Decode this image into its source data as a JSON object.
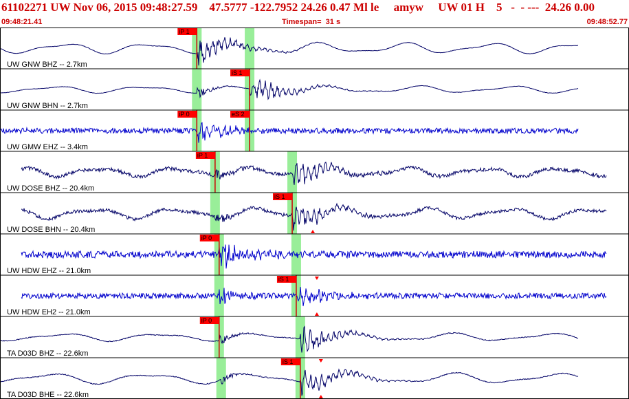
{
  "header": {
    "title": "61102271 UW Nov 06, 2015 09:48:27.59    47.5777 -122.7952 24.26 0.47 Ml le     amyw     UW 01 H    5   -  - ---  24.26 0.00",
    "start_time": "09:48:21.41",
    "timespan": "Timespan=  31 s",
    "end_time": "09:48:52.77"
  },
  "colors": {
    "header_text": "#cc0000",
    "trace_broadband": "#000066",
    "trace_short_period": "#0000cc",
    "pick_box": "#ff0000",
    "pick_line": "#cc0000",
    "window": "#99ee99",
    "separator": "#000000"
  },
  "traces": [
    {
      "label": "UW GNW BHZ -- 2.7km",
      "kind": "broadband",
      "picks": [
        {
          "label": "iP 1",
          "time": 9.7
        },
        {
          "label": "",
          "time": 12.3,
          "window_only": true
        }
      ],
      "windows": [
        9.7,
        12.3
      ],
      "arrival": 9.7,
      "amp": 12,
      "noise": 0.05,
      "start": 0.0,
      "end": 28.5,
      "period": 4.2
    },
    {
      "label": "UW GNW BHN -- 2.7km",
      "kind": "broadband",
      "picks": [
        {
          "label": "iS 1",
          "time": 12.3
        }
      ],
      "windows": [
        9.7,
        12.3
      ],
      "arrival": 12.3,
      "amp": 8,
      "noise": 0.05,
      "start": 0.0,
      "end": 28.5,
      "period": 4.5
    },
    {
      "label": "UW GMW EHZ -- 3.4km",
      "kind": "short",
      "picks": [
        {
          "label": "iP 0",
          "time": 9.7
        },
        {
          "label": "eS 2",
          "time": 12.3
        }
      ],
      "windows": [
        9.7,
        12.3
      ],
      "arrival": 9.7,
      "amp": 3,
      "noise": 0.4,
      "start": 0.0,
      "end": 28.5,
      "period": 1.0
    },
    {
      "label": "UW DOSE BHZ -- 20.4km",
      "kind": "broadband",
      "picks": [
        {
          "label": "iP 1",
          "time": 10.6
        }
      ],
      "windows": [
        10.6,
        14.4
      ],
      "arrival": 14.4,
      "amp": 10,
      "noise": 0.45,
      "start": 1.05,
      "end": 29.9,
      "period": 3.8
    },
    {
      "label": "UW DOSE BHN -- 20.4km",
      "kind": "broadband",
      "picks": [
        {
          "label": "iS 1",
          "time": 14.4,
          "marker_up": true
        }
      ],
      "windows": [
        10.6,
        14.4
      ],
      "arrival": 14.4,
      "amp": 12,
      "noise": 0.4,
      "start": 1.05,
      "end": 29.9,
      "period": 4.1
    },
    {
      "label": "UW HDW EHZ -- 21.0km",
      "kind": "short",
      "picks": [
        {
          "label": "iP 0",
          "time": 10.8
        }
      ],
      "windows": [
        10.8,
        14.6
      ],
      "arrival": 10.8,
      "amp": 3,
      "noise": 0.5,
      "start": 1.05,
      "end": 29.9,
      "period": 1.0
    },
    {
      "label": "UW HDW EH2 -- 21.0km",
      "kind": "short",
      "picks": [
        {
          "label": "iS 1",
          "time": 14.6,
          "marker_down": true,
          "marker_up": true
        }
      ],
      "windows": [
        10.8,
        14.6
      ],
      "arrival": 14.6,
      "amp": 3,
      "noise": 0.4,
      "start": 1.05,
      "end": 29.9,
      "period": 1.0
    },
    {
      "label": "TA D03D BHZ -- 22.6km",
      "kind": "broadband",
      "picks": [
        {
          "label": "iP 0",
          "time": 10.8
        }
      ],
      "windows": [
        10.8,
        14.8
      ],
      "arrival": 14.8,
      "amp": 9,
      "noise": 0.1,
      "start": 0.0,
      "end": 28.5,
      "period": 4.8
    },
    {
      "label": "TA D03D BHE -- 22.6km",
      "kind": "broadband",
      "picks": [
        {
          "label": "iS 1",
          "time": 14.8,
          "marker_down": true,
          "marker_up": true
        }
      ],
      "windows": [
        10.9,
        14.8
      ],
      "arrival": 14.8,
      "amp": 12,
      "noise": 0.1,
      "start": 0.0,
      "end": 28.5,
      "period": 5.0
    }
  ],
  "timespan_seconds": 31
}
